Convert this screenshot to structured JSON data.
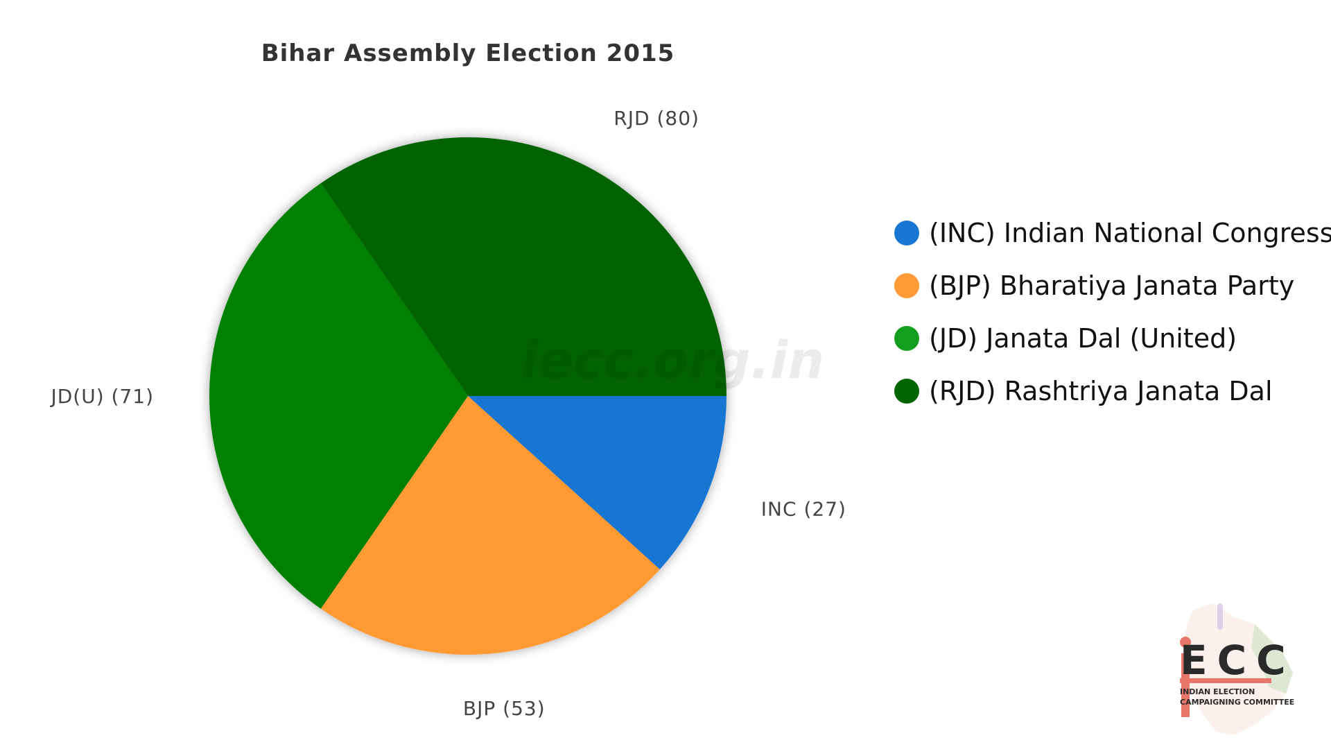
{
  "chart_data": {
    "type": "pie",
    "title": "Bihar Assembly Election 2015",
    "slices": [
      {
        "label": "INC (27)",
        "value": 27,
        "color": "#1976d2"
      },
      {
        "label": "BJP (53)",
        "value": 53,
        "color": "#ff9933"
      },
      {
        "label": "JD(U) (71)",
        "value": 71,
        "color": "#008000"
      },
      {
        "label": "RJD (80)",
        "value": 80,
        "color": "#006400"
      }
    ],
    "legend": [
      {
        "text": "(INC) Indian National Congress",
        "color": "#1976d2"
      },
      {
        "text": "(BJP) Bharatiya Janata Party",
        "color": "#ff9933"
      },
      {
        "text": "(JD) Janata Dal (United)",
        "color": "#12a01e"
      },
      {
        "text": "(RJD) Rashtriya Janata Dal",
        "color": "#006400"
      }
    ],
    "legend_position": "right",
    "start_direction": "east",
    "order": "clockwise"
  },
  "watermark": "iecc.org.in",
  "logo": {
    "mark": "ECC",
    "mark_initial": "i",
    "tagline_1": "INDIAN ELECTION",
    "tagline_2": "CAMPAIGNING COMMITTEE"
  }
}
